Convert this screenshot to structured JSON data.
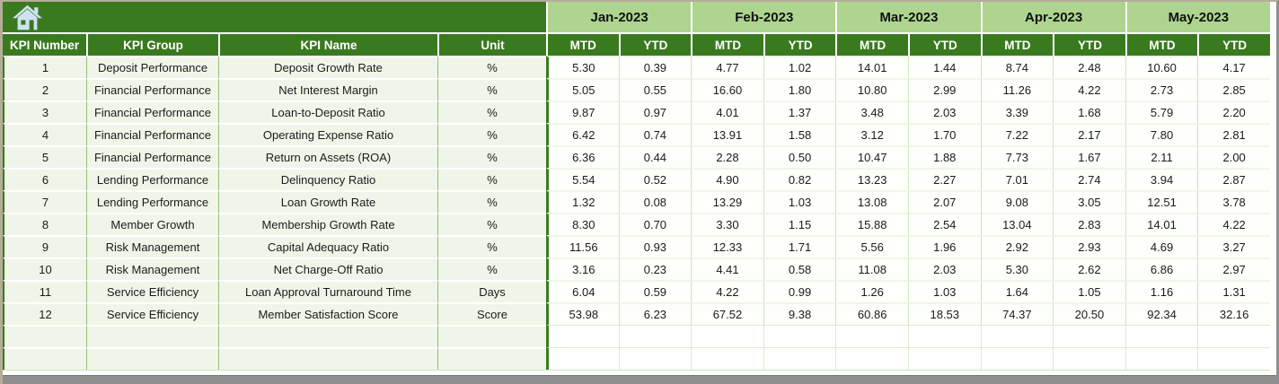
{
  "toolbar": {
    "home_icon": "home"
  },
  "table": {
    "columns": [
      "KPI Number",
      "KPI Group",
      "KPI Name",
      "Unit"
    ],
    "months": [
      "Jan-2023",
      "Feb-2023",
      "Mar-2023",
      "Apr-2023",
      "May-2023"
    ],
    "period_labels": [
      "MTD",
      "YTD"
    ],
    "rows": [
      {
        "number": "1",
        "group": "Deposit Performance",
        "name": "Deposit Growth Rate",
        "unit": "%",
        "values": [
          "5.30",
          "0.39",
          "4.77",
          "1.02",
          "14.01",
          "1.44",
          "8.74",
          "2.48",
          "10.60",
          "4.17"
        ]
      },
      {
        "number": "2",
        "group": "Financial Performance",
        "name": "Net Interest Margin",
        "unit": "%",
        "values": [
          "5.05",
          "0.55",
          "16.60",
          "1.80",
          "10.80",
          "2.99",
          "11.26",
          "4.22",
          "2.73",
          "2.85"
        ]
      },
      {
        "number": "3",
        "group": "Financial Performance",
        "name": "Loan-to-Deposit Ratio",
        "unit": "%",
        "values": [
          "9.87",
          "0.97",
          "4.01",
          "1.37",
          "3.48",
          "2.03",
          "3.39",
          "1.68",
          "5.79",
          "2.20"
        ]
      },
      {
        "number": "4",
        "group": "Financial Performance",
        "name": "Operating Expense Ratio",
        "unit": "%",
        "values": [
          "6.42",
          "0.74",
          "13.91",
          "1.58",
          "3.12",
          "1.70",
          "7.22",
          "2.17",
          "7.80",
          "2.81"
        ]
      },
      {
        "number": "5",
        "group": "Financial Performance",
        "name": "Return on Assets (ROA)",
        "unit": "%",
        "values": [
          "6.36",
          "0.44",
          "2.28",
          "0.50",
          "10.47",
          "1.88",
          "7.73",
          "1.67",
          "2.11",
          "2.00"
        ]
      },
      {
        "number": "6",
        "group": "Lending Performance",
        "name": "Delinquency Ratio",
        "unit": "%",
        "values": [
          "5.54",
          "0.52",
          "4.90",
          "0.82",
          "13.23",
          "2.27",
          "7.01",
          "2.74",
          "3.94",
          "2.87"
        ]
      },
      {
        "number": "7",
        "group": "Lending Performance",
        "name": "Loan Growth Rate",
        "unit": "%",
        "values": [
          "1.32",
          "0.08",
          "13.29",
          "1.03",
          "13.08",
          "2.07",
          "9.08",
          "3.05",
          "12.51",
          "3.78"
        ]
      },
      {
        "number": "8",
        "group": "Member Growth",
        "name": "Membership Growth Rate",
        "unit": "%",
        "values": [
          "8.30",
          "0.70",
          "3.30",
          "1.15",
          "15.88",
          "2.54",
          "13.04",
          "2.83",
          "14.01",
          "4.22"
        ]
      },
      {
        "number": "9",
        "group": "Risk Management",
        "name": "Capital Adequacy Ratio",
        "unit": "%",
        "values": [
          "11.56",
          "0.93",
          "12.33",
          "1.71",
          "5.56",
          "1.96",
          "2.92",
          "2.93",
          "4.69",
          "3.27"
        ]
      },
      {
        "number": "10",
        "group": "Risk Management",
        "name": "Net Charge-Off Ratio",
        "unit": "%",
        "values": [
          "3.16",
          "0.23",
          "4.41",
          "0.58",
          "11.08",
          "2.03",
          "5.30",
          "2.62",
          "6.86",
          "2.97"
        ]
      },
      {
        "number": "11",
        "group": "Service Efficiency",
        "name": "Loan Approval Turnaround Time",
        "unit": "Days",
        "values": [
          "6.04",
          "0.59",
          "4.22",
          "0.99",
          "1.26",
          "1.03",
          "1.64",
          "1.05",
          "1.16",
          "1.31"
        ]
      },
      {
        "number": "12",
        "group": "Service Efficiency",
        "name": "Member Satisfaction Score",
        "unit": "Score",
        "values": [
          "53.98",
          "6.23",
          "67.52",
          "9.38",
          "60.86",
          "18.53",
          "74.37",
          "20.50",
          "92.34",
          "32.16"
        ]
      }
    ],
    "empty_row_count": 2
  },
  "colors": {
    "header_green": "#3a7a1f",
    "month_band_green": "#aed58f",
    "cell_pale_green": "#eff6e9",
    "value_cell_white": "#fdfffa",
    "gridline_light": "#cfe4bd",
    "gridline_mid": "#94bd78",
    "home_icon_blue": "#cfe2f3",
    "frame_grey": "#8f8f8f",
    "frame_tan": "#b5ad9a"
  }
}
